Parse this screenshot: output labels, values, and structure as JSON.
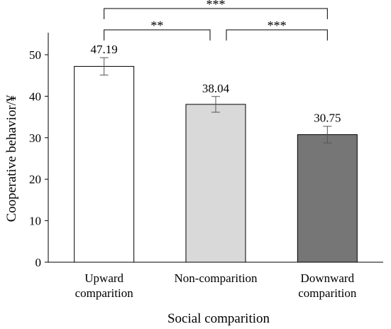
{
  "chart_data": {
    "type": "bar",
    "title": "",
    "xlabel": "Social comparition",
    "ylabel": "Cooperative behavior/¥",
    "ylim": [
      0,
      50
    ],
    "yticks": [
      0,
      10,
      20,
      30,
      40,
      50
    ],
    "grid": false,
    "categories": [
      [
        "Upward",
        "comparition"
      ],
      [
        "Non-comparition"
      ],
      [
        "Downward",
        "comparition"
      ]
    ],
    "values": [
      47.19,
      38.04,
      30.75
    ],
    "value_labels": [
      "47.19",
      "38.04",
      "30.75"
    ],
    "error": [
      2.1,
      1.9,
      2.0
    ],
    "bar_colors": [
      "#ffffff",
      "#d9d9d9",
      "#767676"
    ],
    "significance": [
      {
        "from": 0,
        "to": 2,
        "label": "***"
      },
      {
        "from": 0,
        "to": 1,
        "label": "**"
      },
      {
        "from": 1,
        "to": 2,
        "label": "***"
      }
    ]
  }
}
